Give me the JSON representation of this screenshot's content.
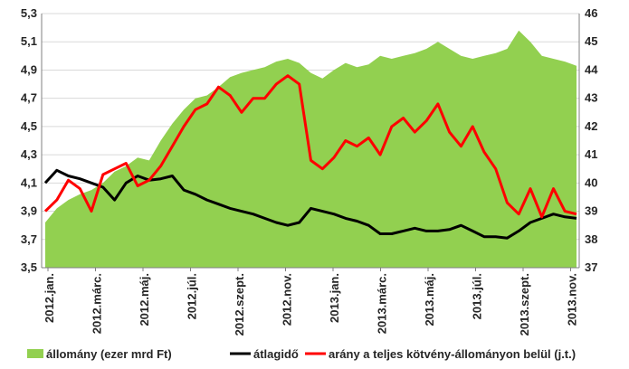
{
  "chart_data": {
    "type": "area",
    "title": "",
    "xlabel": "",
    "ylabel": "",
    "y_left": {
      "min": 3.5,
      "max": 5.3,
      "step": 0.2,
      "ticks": [
        "3,5",
        "3,7",
        "3,9",
        "4,1",
        "4,3",
        "4,5",
        "4,7",
        "4,9",
        "5,1",
        "5,3"
      ]
    },
    "y_right": {
      "min": 37,
      "max": 46,
      "step": 1,
      "ticks": [
        "37",
        "38",
        "39",
        "40",
        "41",
        "42",
        "43",
        "44",
        "45",
        "46"
      ]
    },
    "x_ticks": [
      "2012.jan.",
      "2012.márc.",
      "2012.máj.",
      "2012.júl.",
      "2012.szept.",
      "2012.nov.",
      "2013.jan.",
      "2013.márc.",
      "2013.máj.",
      "2013.júl.",
      "2013.szept.",
      "2013.nov."
    ],
    "legend_position": "bottom",
    "grid": "horizontal",
    "colors": {
      "area": "#92d050",
      "avg_line": "#000000",
      "ratio_line": "#ff0000"
    },
    "series": [
      {
        "name": "állomány (ezer mrd Ft)",
        "type": "area",
        "axis": "left",
        "x": [
          0,
          0.5,
          1,
          1.5,
          2,
          2.5,
          3,
          3.5,
          4,
          4.5,
          5,
          5.5,
          6,
          6.5,
          7,
          7.5,
          8,
          8.5,
          9,
          9.5,
          10,
          10.5,
          11,
          11.5,
          12,
          12.5,
          13,
          13.5,
          14,
          14.5,
          15,
          15.5,
          16,
          16.5,
          17,
          17.5,
          18,
          18.5,
          19,
          19.5,
          20,
          20.5,
          21,
          21.5,
          22,
          22.5,
          23
        ],
        "values": [
          3.82,
          3.92,
          3.98,
          4.02,
          4.05,
          4.1,
          4.18,
          4.22,
          4.28,
          4.26,
          4.4,
          4.52,
          4.62,
          4.7,
          4.72,
          4.78,
          4.85,
          4.88,
          4.9,
          4.92,
          4.96,
          4.98,
          4.95,
          4.88,
          4.84,
          4.9,
          4.95,
          4.92,
          4.94,
          5.0,
          4.98,
          5.0,
          5.02,
          5.05,
          5.1,
          5.05,
          5.0,
          4.98,
          5.0,
          5.02,
          5.05,
          5.18,
          5.1,
          5.0,
          4.98,
          4.96,
          4.93
        ]
      },
      {
        "name": "átlagidő",
        "type": "line",
        "axis": "left",
        "x": [
          0,
          0.5,
          1,
          1.5,
          2,
          2.5,
          3,
          3.5,
          4,
          4.5,
          5,
          5.5,
          6,
          6.5,
          7,
          7.5,
          8,
          8.5,
          9,
          9.5,
          10,
          10.5,
          11,
          11.5,
          12,
          12.5,
          13,
          13.5,
          14,
          14.5,
          15,
          15.5,
          16,
          16.5,
          17,
          17.5,
          18,
          18.5,
          19,
          19.5,
          20,
          20.5,
          21,
          21.5,
          22,
          22.5,
          23
        ],
        "values": [
          4.1,
          4.19,
          4.15,
          4.13,
          4.1,
          4.07,
          3.98,
          4.1,
          4.15,
          4.12,
          4.13,
          4.15,
          4.05,
          4.02,
          3.98,
          3.95,
          3.92,
          3.9,
          3.88,
          3.85,
          3.82,
          3.8,
          3.82,
          3.92,
          3.9,
          3.88,
          3.85,
          3.83,
          3.8,
          3.74,
          3.74,
          3.76,
          3.78,
          3.76,
          3.76,
          3.77,
          3.8,
          3.76,
          3.72,
          3.72,
          3.71,
          3.76,
          3.82,
          3.85,
          3.88,
          3.86,
          3.85
        ]
      },
      {
        "name": "arány a teljes kötvény-állományon belül (j.t.)",
        "type": "line",
        "axis": "right",
        "x": [
          0,
          0.5,
          1,
          1.5,
          2,
          2.5,
          3,
          3.5,
          4,
          4.5,
          5,
          5.5,
          6,
          6.5,
          7,
          7.5,
          8,
          8.5,
          9,
          9.5,
          10,
          10.5,
          11,
          11.5,
          12,
          12.5,
          13,
          13.5,
          14,
          14.5,
          15,
          15.5,
          16,
          16.5,
          17,
          17.5,
          18,
          18.5,
          19,
          19.5,
          20,
          20.5,
          21,
          21.5,
          22,
          22.5,
          23
        ],
        "values": [
          39.0,
          39.4,
          40.1,
          39.8,
          39.0,
          40.3,
          40.5,
          40.7,
          39.9,
          40.1,
          40.6,
          41.3,
          42.0,
          42.6,
          42.8,
          43.4,
          43.1,
          42.5,
          43.0,
          43.0,
          43.5,
          43.8,
          43.5,
          40.8,
          40.5,
          40.9,
          41.5,
          41.3,
          41.6,
          41.0,
          42.0,
          42.3,
          41.8,
          42.2,
          42.8,
          41.8,
          41.3,
          42.0,
          41.1,
          40.5,
          39.3,
          38.9,
          39.8,
          38.8,
          39.8,
          39.0,
          38.9
        ]
      }
    ]
  }
}
